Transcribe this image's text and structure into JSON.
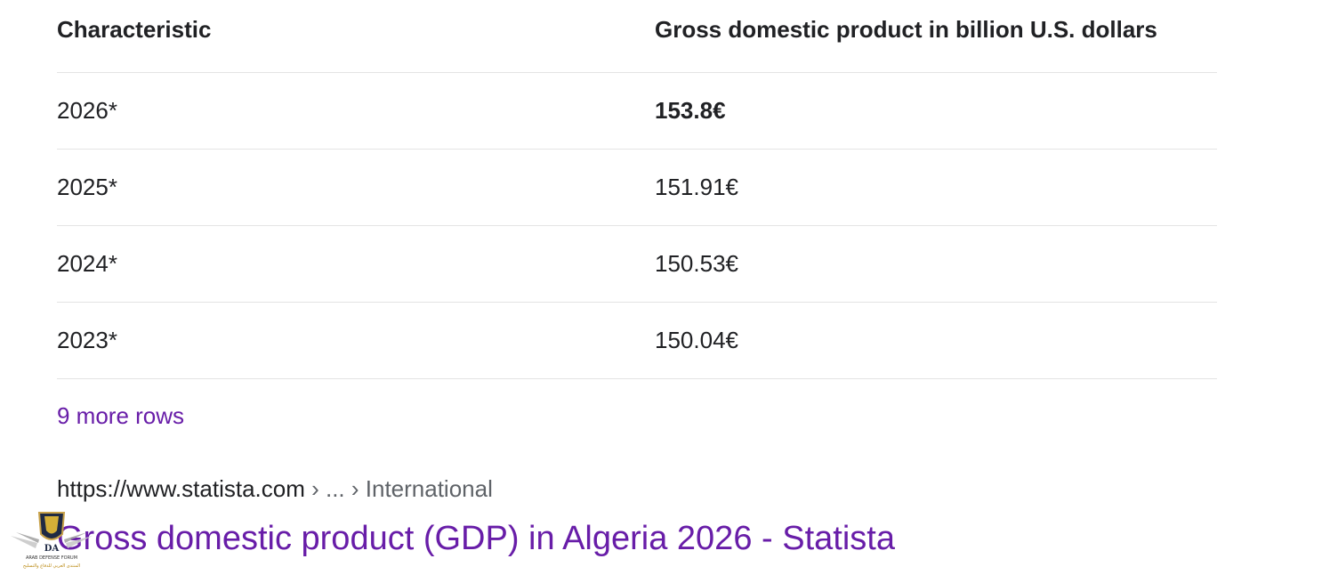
{
  "table": {
    "headers": {
      "characteristic": "Characteristic",
      "value": "Gross domestic product in billion U.S. dollars"
    },
    "rows": [
      {
        "year": "2026*",
        "value": "153.8€"
      },
      {
        "year": "2025*",
        "value": "151.91€"
      },
      {
        "year": "2024*",
        "value": "150.53€"
      },
      {
        "year": "2023*",
        "value": "150.04€"
      }
    ],
    "more_rows_label": "9 more rows"
  },
  "result": {
    "breadcrumb": {
      "site": "https://www.statista.com",
      "sep1": " › ",
      "ellipsis": "...",
      "sep2": " › ",
      "section": "International"
    },
    "title": "Gross domestic product (GDP) in Algeria 2026 - Statista"
  },
  "watermark": {
    "initials": "DA",
    "line1": "ARAB DEFENSE FORUM",
    "line2": "المنتدى العربي للدفاع والتسليح"
  },
  "colors": {
    "link": "#681da8",
    "text": "#202124",
    "muted": "#5f6368",
    "divider": "#e4e4e4"
  }
}
